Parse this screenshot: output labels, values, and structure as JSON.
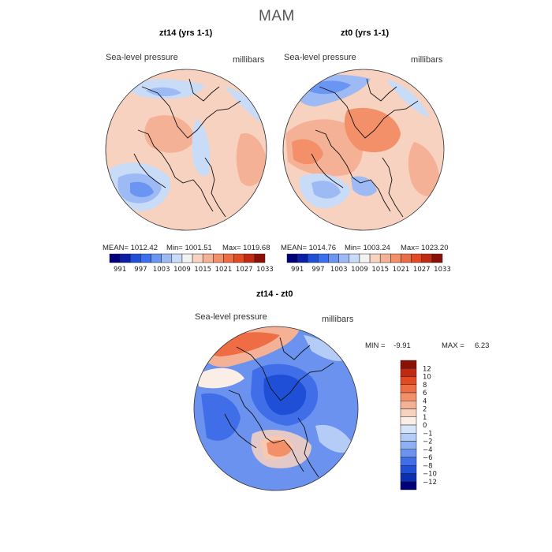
{
  "figure_title": "MAM",
  "chart_data": [
    {
      "type": "heatmap",
      "title": "zt14 (yrs 1-1)",
      "variable": "Sea-level pressure",
      "units": "millibars",
      "stats": {
        "mean": "MEAN= 1012.42",
        "min": "Min= 1001.51",
        "max": "Max= 1019.68"
      },
      "colorbar_ticks": [
        "991",
        "997",
        "1003",
        "1009",
        "1015",
        "1021",
        "1027",
        "1033"
      ]
    },
    {
      "type": "heatmap",
      "title": "zt0 (yrs 1-1)",
      "variable": "Sea-level pressure",
      "units": "millibars",
      "stats": {
        "mean": "MEAN= 1014.76",
        "min": "Min= 1003.24",
        "max": "Max= 1023.20"
      },
      "colorbar_ticks": [
        "991",
        "997",
        "1003",
        "1009",
        "1015",
        "1021",
        "1027",
        "1033"
      ]
    },
    {
      "type": "heatmap",
      "title": "zt14 - zt0",
      "variable": "Sea-level pressure",
      "units": "millibars",
      "stats": {
        "min": "MIN =    -9.91",
        "max": "MAX =     6.23"
      },
      "colorbar_ticks": [
        "12",
        "10",
        "8",
        "6",
        "4",
        "2",
        "1",
        "0",
        "−1",
        "−2",
        "−4",
        "−6",
        "−8",
        "−10",
        "−12"
      ]
    }
  ],
  "colors": {
    "abs_scale": [
      "#00007a",
      "#0a1fa8",
      "#1f4fd6",
      "#3a6ff0",
      "#6b95f2",
      "#9dbaf5",
      "#c9dcf7",
      "#f2f2f2",
      "#f8d2c0",
      "#f5b195",
      "#f3906a",
      "#ef6d44",
      "#e34a22",
      "#c12a12",
      "#8a0f06"
    ],
    "diff_scale": [
      "#8a0f06",
      "#c12a12",
      "#e34a22",
      "#ef6d44",
      "#f3906a",
      "#f5b195",
      "#f8d2c0",
      "#fbeee6",
      "#d6e4fa",
      "#b5cdf6",
      "#8fb0f2",
      "#6a92ee",
      "#3f6ee8",
      "#1f4fd6",
      "#0a2fb0",
      "#00007a"
    ]
  }
}
